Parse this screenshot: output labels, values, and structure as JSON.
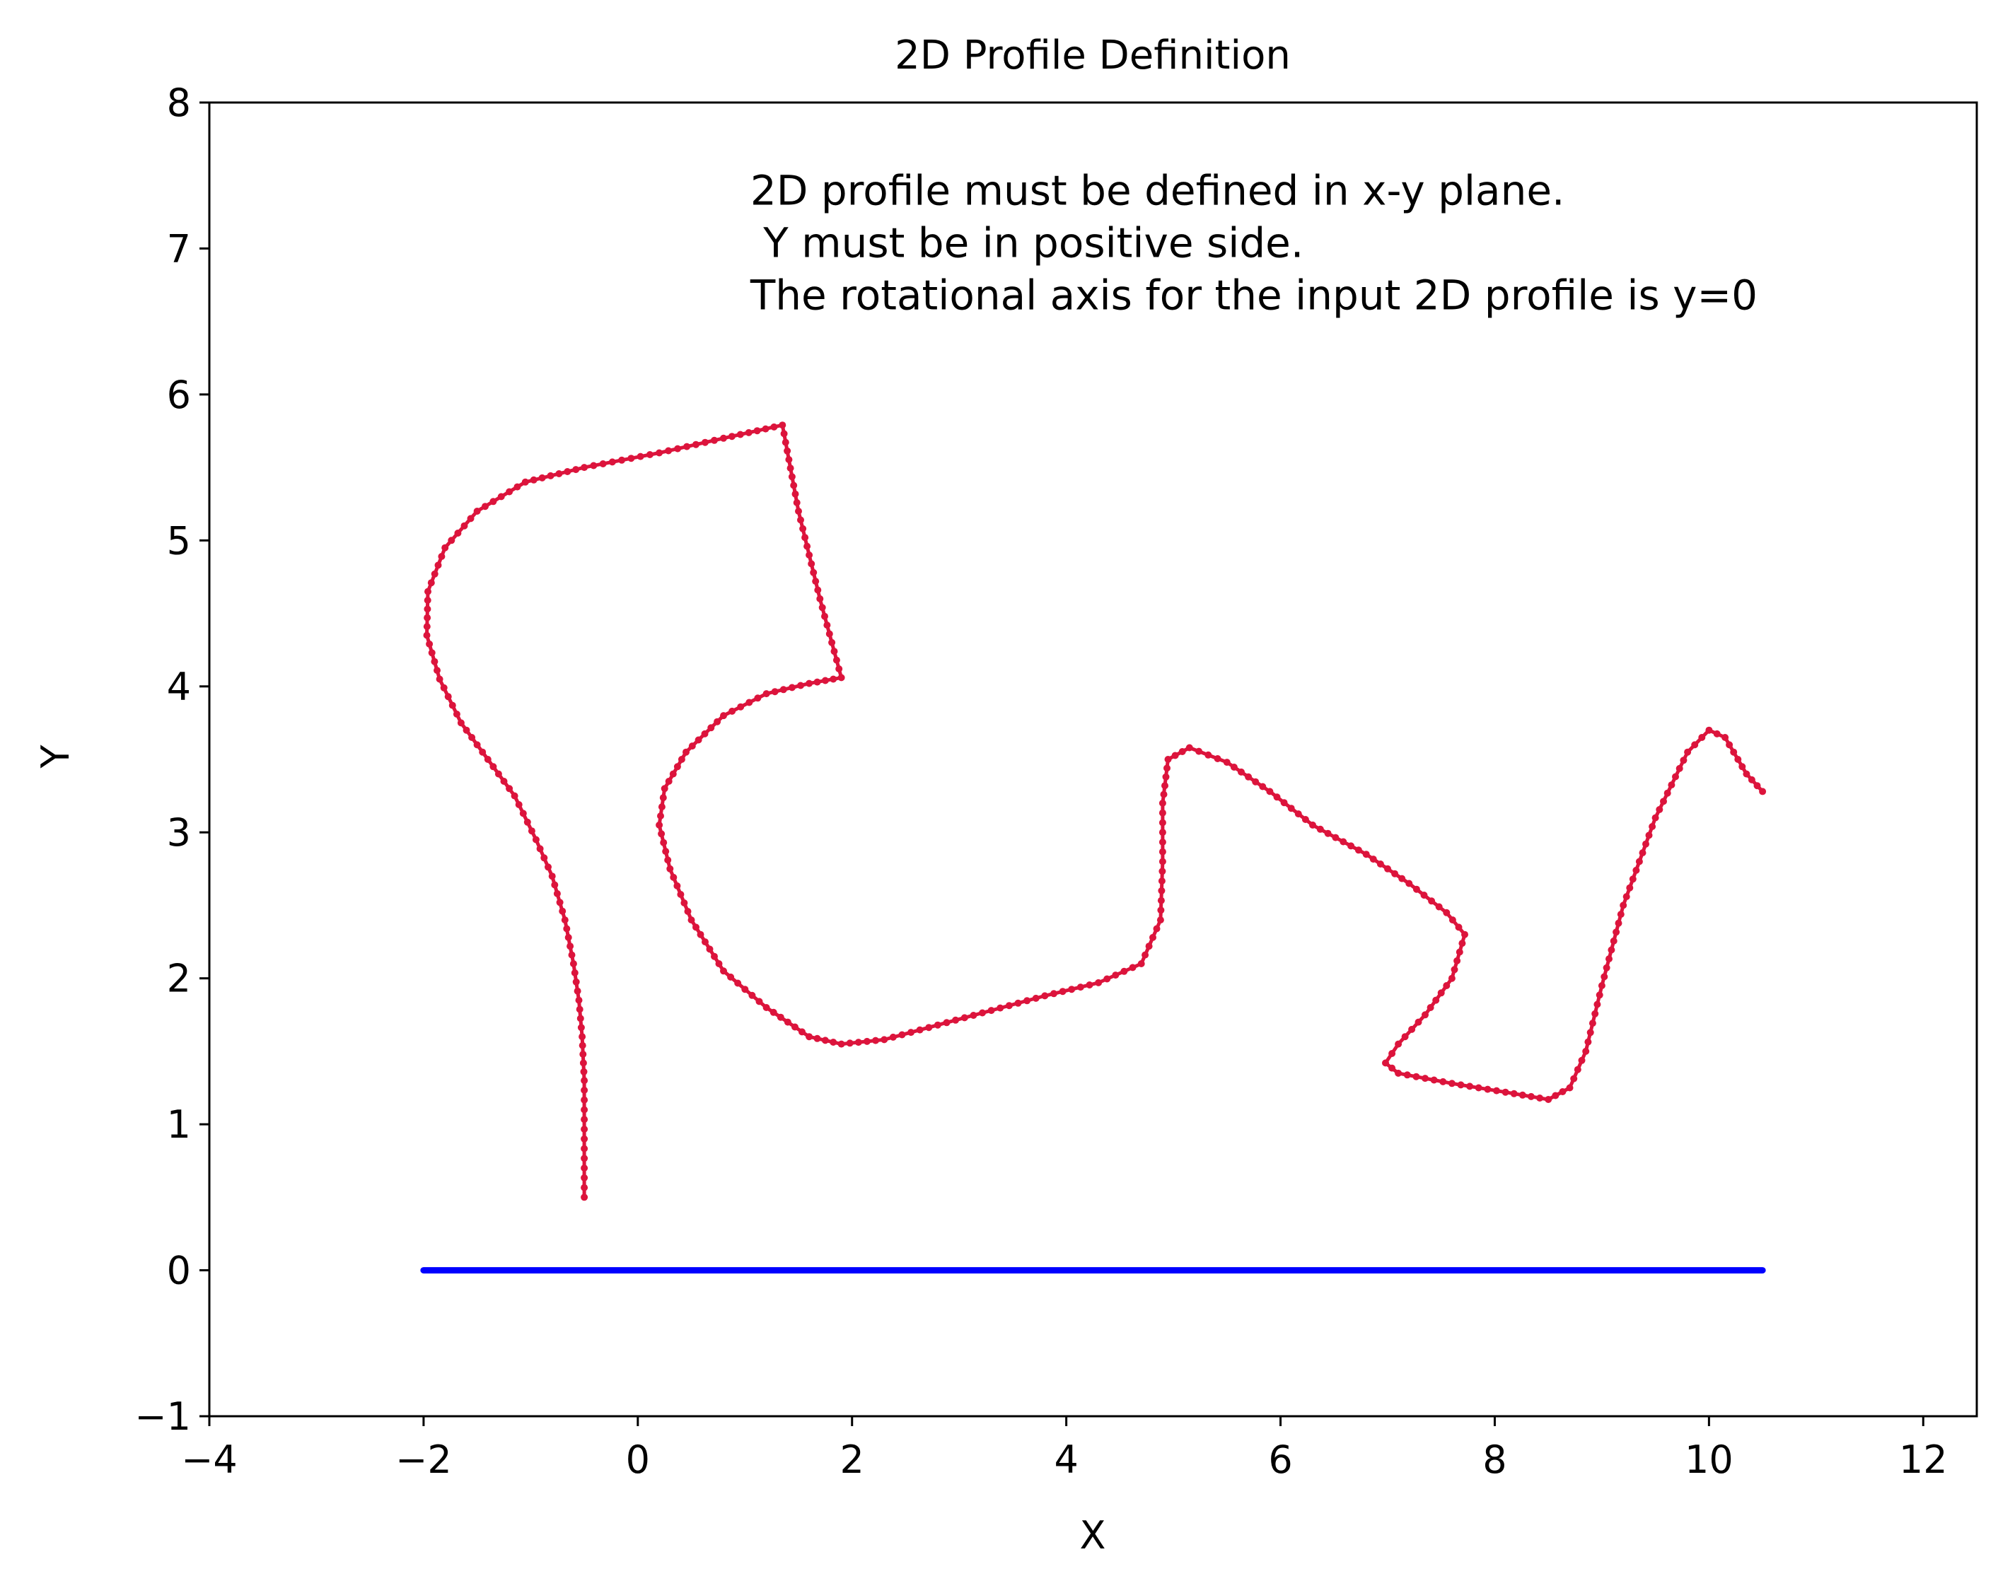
{
  "chart_data": {
    "type": "line",
    "title": "2D Profile Definition",
    "xlabel": "X",
    "ylabel": "Y",
    "xlim": [
      -4,
      12.5
    ],
    "ylim": [
      -1,
      8
    ],
    "xticks": [
      -4,
      -2,
      0,
      2,
      4,
      6,
      8,
      10,
      12
    ],
    "xtick_labels": [
      "−4",
      "−2",
      "0",
      "2",
      "4",
      "6",
      "8",
      "10",
      "12"
    ],
    "yticks": [
      -1,
      0,
      1,
      2,
      3,
      4,
      5,
      6,
      7,
      8
    ],
    "ytick_labels": [
      "−1",
      "0",
      "1",
      "2",
      "3",
      "4",
      "5",
      "6",
      "7",
      "8"
    ],
    "grid": false,
    "annotation": {
      "lines": [
        "2D profile must be defined in x-y plane.",
        " Y must be in positive side.",
        "The rotational axis for the input 2D profile is y=0"
      ],
      "x": 1.05,
      "y": 7.3
    },
    "series": [
      {
        "color": "#DC143C",
        "markers": true,
        "points": [
          [
            -0.5,
            0.5
          ],
          [
            -0.5,
            0.9
          ],
          [
            -0.5,
            1.3
          ],
          [
            -0.52,
            1.6
          ],
          [
            -0.55,
            1.85
          ],
          [
            -0.6,
            2.1
          ],
          [
            -0.68,
            2.4
          ],
          [
            -0.8,
            2.7
          ],
          [
            -0.95,
            2.95
          ],
          [
            -1.15,
            3.25
          ],
          [
            -1.4,
            3.5
          ],
          [
            -1.65,
            3.75
          ],
          [
            -1.85,
            4.05
          ],
          [
            -1.97,
            4.35
          ],
          [
            -1.96,
            4.65
          ],
          [
            -1.8,
            4.95
          ],
          [
            -1.5,
            5.2
          ],
          [
            -1.05,
            5.4
          ],
          [
            -0.5,
            5.5
          ],
          [
            0.2,
            5.6
          ],
          [
            0.8,
            5.7
          ],
          [
            1.35,
            5.79
          ],
          [
            1.5,
            5.2
          ],
          [
            1.7,
            4.6
          ],
          [
            1.9,
            4.06
          ],
          [
            1.6,
            4.02
          ],
          [
            1.2,
            3.95
          ],
          [
            0.8,
            3.8
          ],
          [
            0.45,
            3.55
          ],
          [
            0.25,
            3.3
          ],
          [
            0.2,
            3.05
          ],
          [
            0.3,
            2.75
          ],
          [
            0.5,
            2.4
          ],
          [
            0.8,
            2.05
          ],
          [
            1.2,
            1.8
          ],
          [
            1.6,
            1.6
          ],
          [
            1.9,
            1.55
          ],
          [
            2.3,
            1.58
          ],
          [
            2.8,
            1.68
          ],
          [
            3.3,
            1.78
          ],
          [
            3.8,
            1.88
          ],
          [
            4.3,
            1.97
          ],
          [
            4.7,
            2.1
          ],
          [
            4.88,
            2.4
          ],
          [
            4.9,
            2.8
          ],
          [
            4.9,
            3.2
          ],
          [
            4.95,
            3.5
          ],
          [
            5.15,
            3.58
          ],
          [
            5.5,
            3.48
          ],
          [
            5.9,
            3.28
          ],
          [
            6.3,
            3.05
          ],
          [
            6.8,
            2.85
          ],
          [
            7.2,
            2.65
          ],
          [
            7.55,
            2.45
          ],
          [
            7.72,
            2.3
          ],
          [
            7.6,
            2.0
          ],
          [
            7.35,
            1.75
          ],
          [
            7.1,
            1.55
          ],
          [
            6.98,
            1.42
          ],
          [
            7.1,
            1.35
          ],
          [
            7.6,
            1.28
          ],
          [
            8.1,
            1.22
          ],
          [
            8.5,
            1.17
          ],
          [
            8.7,
            1.25
          ],
          [
            8.85,
            1.5
          ],
          [
            9.0,
            1.95
          ],
          [
            9.2,
            2.5
          ],
          [
            9.5,
            3.1
          ],
          [
            9.8,
            3.55
          ],
          [
            10.0,
            3.7
          ],
          [
            10.15,
            3.65
          ],
          [
            10.35,
            3.4
          ],
          [
            10.5,
            3.28
          ]
        ]
      },
      {
        "color": "#0000FF",
        "markers": false,
        "points": [
          [
            -2,
            0
          ],
          [
            10.5,
            0
          ]
        ]
      }
    ]
  }
}
